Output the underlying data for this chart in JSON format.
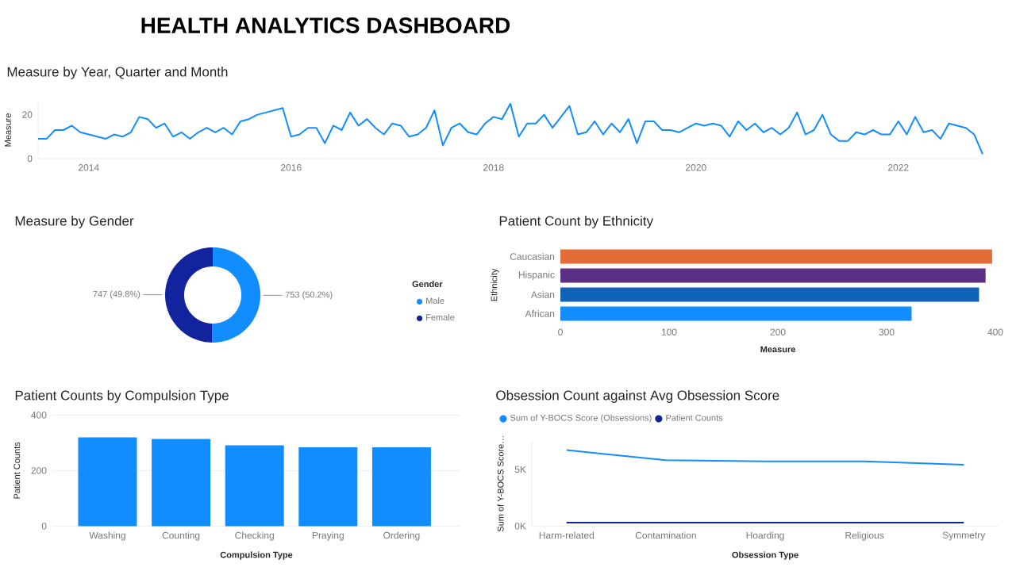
{
  "chart_data": [
    {
      "type": "other",
      "title": "HEALTH ANALYTICS DASHBOARD"
    },
    {
      "type": "line",
      "title": "Measure by Year, Quarter and Month",
      "ylabel": "Measure",
      "color": "#118dff",
      "x": [
        "2013-07",
        "2013-08",
        "2013-09",
        "2013-10",
        "2013-11",
        "2013-12",
        "2014-01",
        "2014-02",
        "2014-03",
        "2014-04",
        "2014-05",
        "2014-06",
        "2014-07",
        "2014-08",
        "2014-09",
        "2014-10",
        "2014-11",
        "2014-12",
        "2015-01",
        "2015-02",
        "2015-03",
        "2015-04",
        "2015-05",
        "2015-06",
        "2015-07",
        "2015-08",
        "2015-09",
        "2015-10",
        "2015-11",
        "2015-12",
        "2016-01",
        "2016-02",
        "2016-03",
        "2016-04",
        "2016-05",
        "2016-06",
        "2016-07",
        "2016-08",
        "2016-09",
        "2016-10",
        "2016-11",
        "2016-12",
        "2017-01",
        "2017-02",
        "2017-03",
        "2017-04",
        "2017-05",
        "2017-06",
        "2017-07",
        "2017-08",
        "2017-09",
        "2017-10",
        "2017-11",
        "2017-12",
        "2018-01",
        "2018-02",
        "2018-03",
        "2018-04",
        "2018-05",
        "2018-06",
        "2018-07",
        "2018-08",
        "2018-09",
        "2018-10",
        "2018-11",
        "2018-12",
        "2019-01",
        "2019-02",
        "2019-03",
        "2019-04",
        "2019-05",
        "2019-06",
        "2019-07",
        "2019-08",
        "2019-09",
        "2019-10",
        "2019-11",
        "2019-12",
        "2020-01",
        "2020-02",
        "2020-03",
        "2020-04",
        "2020-05",
        "2020-06",
        "2020-07",
        "2020-08",
        "2020-09",
        "2020-10",
        "2020-11",
        "2020-12",
        "2021-01",
        "2021-02",
        "2021-03",
        "2021-04",
        "2021-05",
        "2021-06",
        "2021-07",
        "2021-08",
        "2021-09",
        "2021-10",
        "2021-11",
        "2021-12",
        "2022-01",
        "2022-02",
        "2022-03",
        "2022-04",
        "2022-05",
        "2022-06",
        "2022-07",
        "2022-08",
        "2022-09",
        "2022-10",
        "2022-11"
      ],
      "values": [
        9,
        9,
        13,
        13,
        15,
        12,
        11,
        10,
        9,
        11,
        10,
        12,
        19,
        18,
        14,
        16,
        10,
        12,
        9,
        12,
        14,
        12,
        14,
        11,
        17,
        18,
        20,
        21,
        22,
        23,
        10,
        11,
        14,
        14,
        7,
        15,
        13,
        21,
        15,
        18,
        14,
        11,
        16,
        15,
        10,
        11,
        14,
        22,
        6,
        14,
        16,
        12,
        11,
        16,
        19,
        18,
        25,
        10,
        16,
        16,
        20,
        14,
        19,
        24,
        11,
        12,
        17,
        11,
        16,
        12,
        18,
        7,
        17,
        17,
        13,
        13,
        12,
        14,
        16,
        15,
        16,
        15,
        10,
        17,
        13,
        16,
        12,
        14,
        11,
        14,
        21,
        11,
        13,
        20,
        11,
        8,
        8,
        12,
        11,
        13,
        11,
        11,
        17,
        11,
        19,
        12,
        13,
        9,
        16,
        15,
        14,
        11,
        2
      ],
      "xlim": [
        "2013-07",
        "2022-11"
      ],
      "xticks": [
        "2014",
        "2016",
        "2018",
        "2020",
        "2022"
      ],
      "ylim": [
        0,
        26
      ],
      "yticks": [
        0,
        20
      ]
    },
    {
      "type": "donut",
      "title": "Measure by Gender",
      "categories": [
        "Male",
        "Female"
      ],
      "values": [
        753,
        747
      ],
      "colors": [
        "#118dff",
        "#12239e"
      ],
      "value_labels": [
        "753 (50.2%)",
        "747 (49.8%)"
      ],
      "legend_title": "Gender",
      "legend": "right"
    },
    {
      "type": "bar",
      "orientation": "horizontal",
      "title": "Patient Count by Ethnicity",
      "xlabel": "Measure",
      "ylabel": "Ethnicity",
      "categories": [
        "Caucasian",
        "Hispanic",
        "Asian",
        "African"
      ],
      "values": [
        397,
        391,
        385,
        323
      ],
      "colors": [
        "#e66c37",
        "#5b2f83",
        "#1061b8",
        "#118dff"
      ],
      "xlim": [
        0,
        400
      ],
      "xticks": [
        0,
        100,
        200,
        300,
        400
      ]
    },
    {
      "type": "bar",
      "title": "Patient Counts by Compulsion Type",
      "xlabel": "Compulsion Type",
      "ylabel": "Patient Counts",
      "categories": [
        "Washing",
        "Counting",
        "Checking",
        "Praying",
        "Ordering"
      ],
      "values": [
        320,
        314,
        291,
        284,
        284
      ],
      "color": "#118dff",
      "ylim": [
        0,
        400
      ],
      "yticks": [
        0,
        200,
        400
      ],
      "grid": "y"
    },
    {
      "type": "line",
      "title": "Obsession Count against Avg Obsession Score",
      "xlabel": "Obsession Type",
      "ylabel": "Sum of Y-BOCS Score…",
      "categories": [
        "Harm-related",
        "Contamination",
        "Hoarding",
        "Religious",
        "Symmetry"
      ],
      "series": [
        {
          "name": "Sum of Y-BOCS Score (Obsessions)",
          "color": "#118dff",
          "values": [
            6700,
            5800,
            5700,
            5700,
            5400
          ]
        },
        {
          "name": "Patient Counts",
          "color": "#12239e",
          "values": [
            300,
            300,
            300,
            300,
            300
          ]
        }
      ],
      "ylim": [
        0,
        7500
      ],
      "yticks": [
        {
          "value": 0,
          "label": "0K"
        },
        {
          "value": 5000,
          "label": "5K"
        }
      ],
      "legend": "top left"
    }
  ]
}
